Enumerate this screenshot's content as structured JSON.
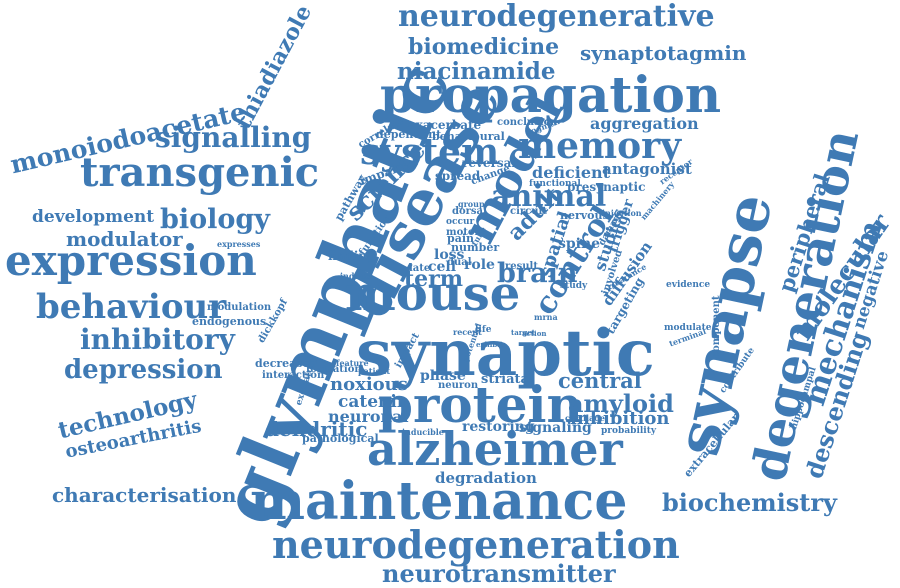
{
  "color": "#3f7ab4",
  "words": [
    "neurodegenerative",
    "biomedicine",
    "synaptotagmin",
    "niacinamide",
    "thiadiazole",
    "propagation",
    "monoiodoacetate",
    "signalling",
    "system",
    "memory",
    "transgenic",
    "animal",
    "disease",
    "model",
    "glymphatic",
    "synapse",
    "degeneration",
    "development",
    "biology",
    "modulator",
    "expression",
    "peripheral",
    "mechanism",
    "molecular",
    "negative",
    "behaviour",
    "mouse",
    "brain",
    "control",
    "inhibitory",
    "synaptic",
    "depression",
    "descending",
    "technology",
    "osteoarthritis",
    "protein",
    "amyloid",
    "central",
    "noxious",
    "catenin",
    "neuronal",
    "dendritic",
    "alzheimer",
    "inhibition",
    "degradation",
    "characterisation",
    "maintenance",
    "biochemistry",
    "neurodegeneration",
    "neurotransmitter",
    "exacerbate",
    "aggregation",
    "deficient",
    "antagonist",
    "science",
    "adult",
    "spatial",
    "studies",
    "term",
    "spine",
    "cell",
    "loss",
    "finding",
    "phase",
    "restoring",
    "signaling",
    "pathological",
    "endogenous",
    "modulation",
    "expresses",
    "hippocampal",
    "extracellular",
    "component",
    "terminal",
    "trigger",
    "diffusion",
    "targeting",
    "spread",
    "reversal",
    "impaired",
    "pathway",
    "pain",
    "dorsal",
    "occur",
    "motor",
    "function",
    "circuit",
    "nervous",
    "presynaptic",
    "functional",
    "injection",
    "receptor",
    "machinery",
    "evidence",
    "modulate",
    "contribute",
    "striatal",
    "neuron",
    "interaction",
    "decrease",
    "dickkopf",
    "formation",
    "feature",
    "patient",
    "impact",
    "potential",
    "probability",
    "cartilage",
    "inducible",
    "excitatory",
    "role",
    "number",
    "result",
    "late",
    "dual",
    "induce",
    "study",
    "conclusion",
    "cognitive",
    "dependent",
    "behavioural",
    "correlate",
    "life",
    "recent",
    "tune",
    "clearance",
    "action",
    "change",
    "involved",
    "mrna",
    "target",
    "exhibit",
    "damage",
    "group"
  ]
}
